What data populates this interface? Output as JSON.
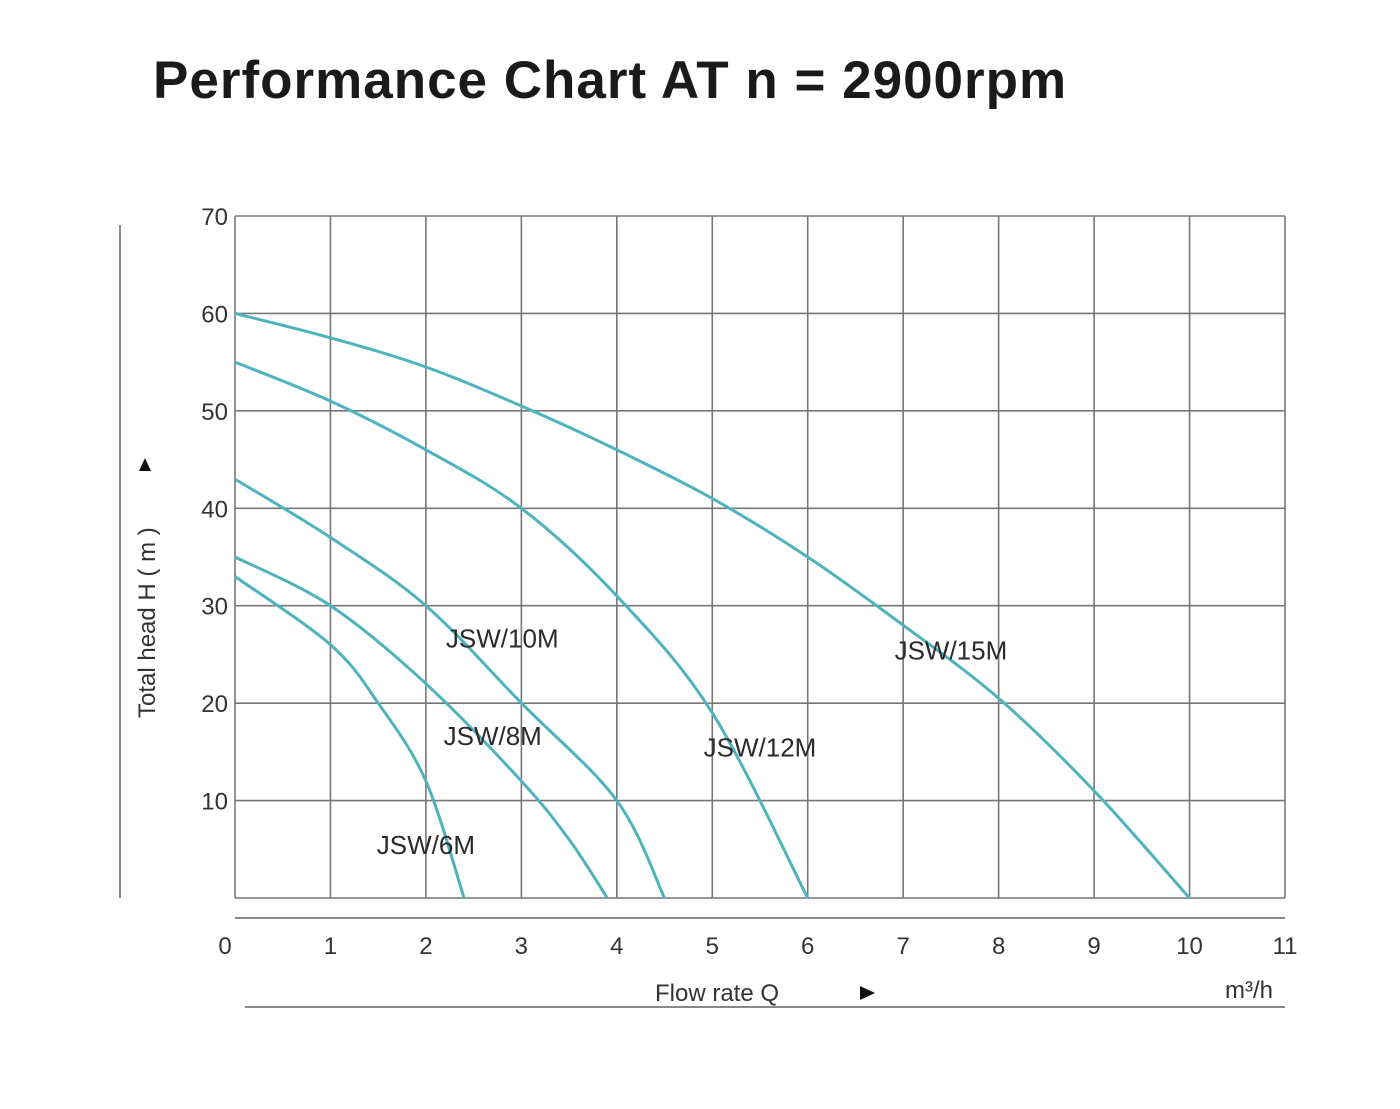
{
  "chart_data": {
    "type": "line",
    "title": "Performance Chart AT n = 2900rpm",
    "xlabel": "Flow rate Q",
    "xunit": "m³/h",
    "ylabel": "Total head H ( m )",
    "xlim": [
      0,
      11
    ],
    "ylim": [
      0,
      70
    ],
    "xticks": [
      0,
      1,
      2,
      3,
      4,
      5,
      6,
      7,
      8,
      9,
      10,
      11
    ],
    "yticks": [
      10,
      20,
      30,
      40,
      50,
      60,
      70
    ],
    "grid": true,
    "legend": "inline labels",
    "line_color": "#4fb3bd",
    "series": [
      {
        "name": "JSW/6M",
        "label_at": [
          2.0,
          4.5
        ],
        "x": [
          0,
          1,
          1.5,
          2,
          2.4
        ],
        "y": [
          33,
          26,
          20,
          12,
          0
        ]
      },
      {
        "name": "JSW/8M",
        "label_at": [
          2.7,
          15.7
        ],
        "x": [
          0,
          1,
          2,
          3,
          3.5,
          3.9
        ],
        "y": [
          35,
          30,
          22,
          12,
          6,
          0
        ]
      },
      {
        "name": "JSW/10M",
        "label_at": [
          2.8,
          25.7
        ],
        "x": [
          0,
          1,
          2,
          3,
          4,
          4.5
        ],
        "y": [
          43,
          37,
          30,
          20,
          10,
          0
        ]
      },
      {
        "name": "JSW/12M",
        "label_at": [
          5.5,
          14.5
        ],
        "x": [
          0,
          1,
          2,
          3,
          4,
          5,
          6
        ],
        "y": [
          55,
          51,
          46,
          40,
          31,
          19,
          0
        ]
      },
      {
        "name": "JSW/15M",
        "label_at": [
          7.5,
          24.5
        ],
        "x": [
          0,
          1,
          2,
          3,
          4,
          5,
          6,
          7,
          8,
          9,
          10
        ],
        "y": [
          60,
          57.5,
          54.5,
          50.5,
          46,
          41,
          35,
          28,
          20.5,
          11,
          0
        ]
      }
    ]
  }
}
